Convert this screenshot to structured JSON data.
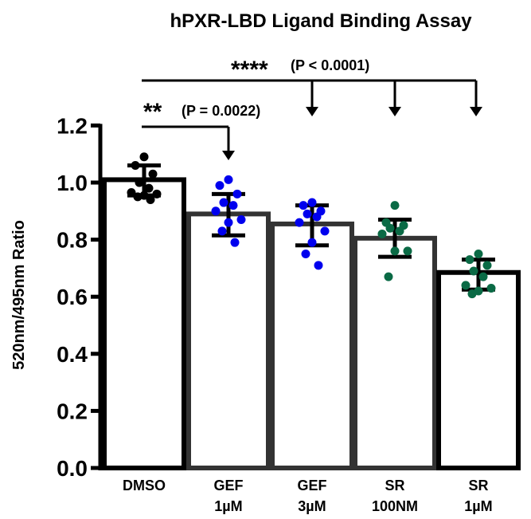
{
  "chart_data": {
    "type": "bar",
    "title": "hPXR-LBD Ligand Binding Assay",
    "xlabel": "",
    "ylabel": "520nm/495nm Ratio",
    "ylim": [
      0.0,
      1.2
    ],
    "yticks": [
      "0.0",
      "0.2",
      "0.4",
      "0.6",
      "0.8",
      "1.0",
      "1.2"
    ],
    "grid": false,
    "legend": "none",
    "categories": [
      {
        "line1": "DMSO",
        "line2": ""
      },
      {
        "line1": "GEF",
        "line2": "1µM"
      },
      {
        "line1": "GEF",
        "line2": "3µM"
      },
      {
        "line1": "SR",
        "line2": "100NM"
      },
      {
        "line1": "SR",
        "line2": "1µM"
      }
    ],
    "values": [
      1.01,
      0.89,
      0.855,
      0.805,
      0.685
    ],
    "error_bars": [
      {
        "low": 0.955,
        "high": 1.06
      },
      {
        "low": 0.815,
        "high": 0.96
      },
      {
        "low": 0.78,
        "high": 0.92
      },
      {
        "low": 0.74,
        "high": 0.87
      },
      {
        "low": 0.625,
        "high": 0.73
      }
    ],
    "bar_outline_colors": [
      "#000000",
      "#333333",
      "#333333",
      "#333333",
      "#000000"
    ],
    "point_colors": [
      "#000000",
      "#0000ee",
      "#0000ee",
      "#0a6a45",
      "#0a6a45"
    ],
    "points": [
      [
        1.09,
        1.06,
        1.03,
        1.0,
        0.98,
        0.965,
        0.96,
        0.955,
        0.95,
        0.94
      ],
      [
        1.01,
        0.99,
        0.96,
        0.93,
        0.92,
        0.9,
        0.87,
        0.86,
        0.83,
        0.79
      ],
      [
        0.93,
        0.92,
        0.9,
        0.89,
        0.88,
        0.86,
        0.83,
        0.79,
        0.75,
        0.71
      ],
      [
        0.92,
        0.86,
        0.85,
        0.84,
        0.83,
        0.82,
        0.76,
        0.76,
        0.67
      ],
      [
        0.75,
        0.73,
        0.71,
        0.69,
        0.67,
        0.64,
        0.63,
        0.62,
        0.61
      ]
    ],
    "annotations": [
      {
        "stars": "**",
        "text": "(P = 0.0022)",
        "from": "DMSO",
        "to": [
          "GEF 1µM"
        ]
      },
      {
        "stars": "****",
        "text": "(P < 0.0001)",
        "from": "DMSO",
        "to": [
          "GEF 3µM",
          "SR 100NM",
          "SR 1µM"
        ]
      }
    ]
  }
}
